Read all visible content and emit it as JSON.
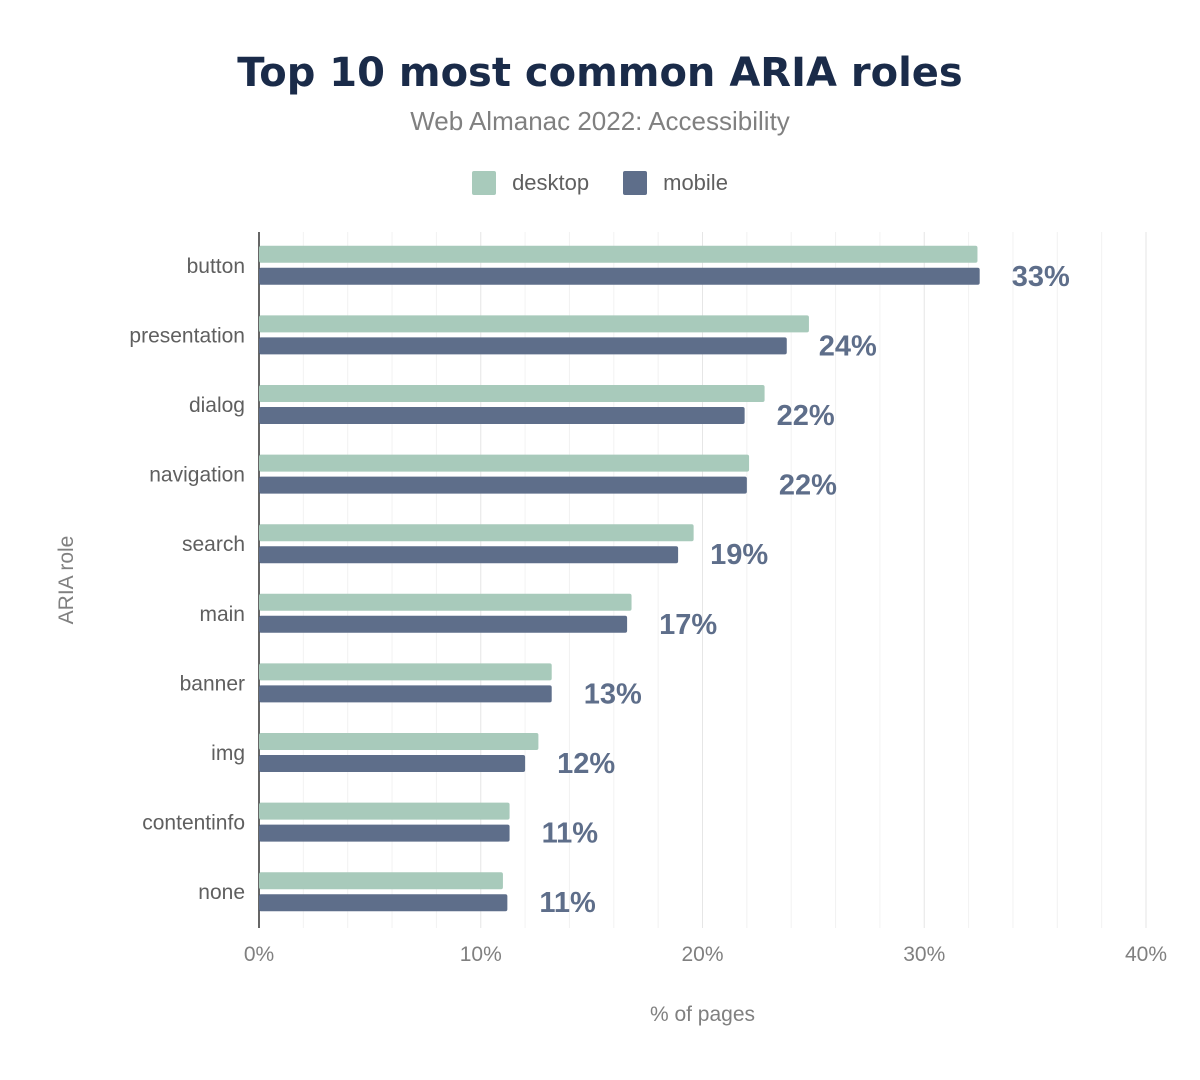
{
  "chart_data": {
    "type": "bar",
    "orientation": "horizontal",
    "title": "Top 10 most common ARIA roles",
    "subtitle": "Web Almanac 2022: Accessibility",
    "xlabel": "% of pages",
    "ylabel": "ARIA role",
    "xlim": [
      0,
      40
    ],
    "xticks": [
      "0%",
      "10%",
      "20%",
      "30%",
      "40%"
    ],
    "grid": true,
    "legend": "top",
    "categories": [
      "button",
      "presentation",
      "dialog",
      "navigation",
      "search",
      "main",
      "banner",
      "img",
      "contentinfo",
      "none"
    ],
    "series": [
      {
        "name": "desktop",
        "color": "#a8cabb",
        "values": [
          32.4,
          24.8,
          22.8,
          22.1,
          19.6,
          16.8,
          13.2,
          12.6,
          11.3,
          11.0
        ]
      },
      {
        "name": "mobile",
        "color": "#5e6e8a",
        "values": [
          32.5,
          23.8,
          21.9,
          22.0,
          18.9,
          16.6,
          13.2,
          12.0,
          11.3,
          11.2
        ],
        "data_labels": [
          "33%",
          "24%",
          "22%",
          "22%",
          "19%",
          "17%",
          "13%",
          "12%",
          "11%",
          "11%"
        ]
      }
    ]
  }
}
